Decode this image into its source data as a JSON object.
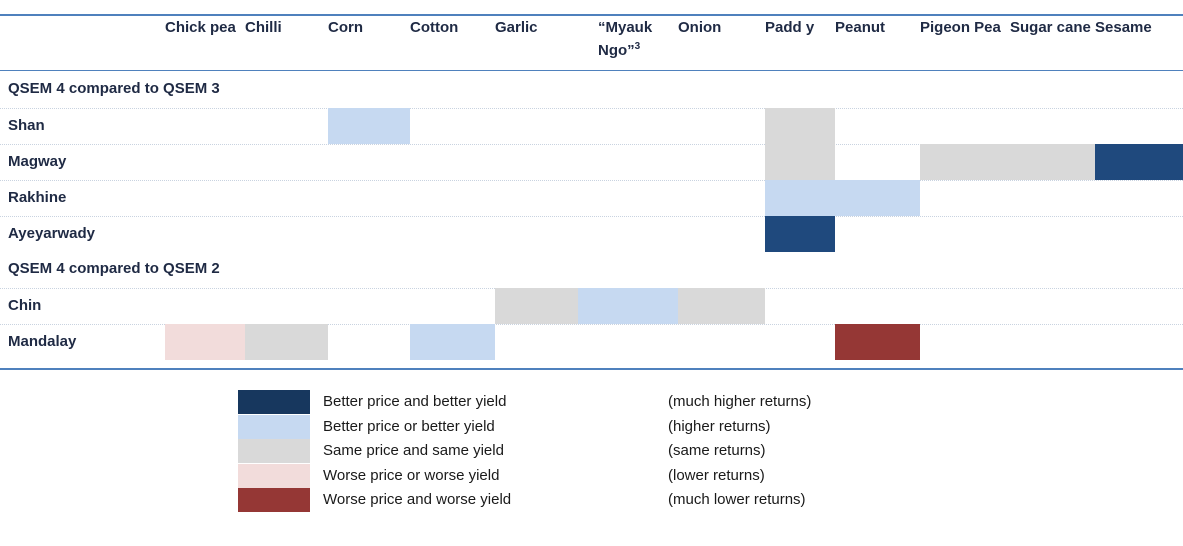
{
  "table": {
    "columns": [
      "Chick pea",
      "Chilli",
      "Corn",
      "Cotton",
      "Garlic",
      "“Myauk Ngo”",
      "Onion",
      "Padd y",
      "Peanut",
      "Pigeon Pea",
      "Sugar cane",
      "Sesame"
    ],
    "column_notes": {
      "5": "3"
    },
    "sections": [
      {
        "title": "QSEM 4 compared to QSEM 3",
        "rows": [
          {
            "label": "Shan",
            "cells": [
              null,
              null,
              1,
              null,
              null,
              null,
              null,
              2,
              null,
              null,
              null,
              null
            ]
          },
          {
            "label": "Magway",
            "cells": [
              null,
              null,
              null,
              null,
              null,
              null,
              null,
              2,
              null,
              2,
              2,
              0
            ]
          },
          {
            "label": "Rakhine",
            "cells": [
              null,
              null,
              null,
              null,
              null,
              null,
              null,
              1,
              1,
              null,
              null,
              null
            ]
          },
          {
            "label": "Ayeyarwady",
            "cells": [
              null,
              null,
              null,
              null,
              null,
              null,
              null,
              0,
              null,
              null,
              null,
              null
            ]
          }
        ]
      },
      {
        "title": "QSEM 4 compared to QSEM 2",
        "rows": [
          {
            "label": "Chin",
            "cells": [
              null,
              null,
              null,
              null,
              2,
              1,
              2,
              null,
              null,
              null,
              null,
              null
            ]
          },
          {
            "label": "Mandalay",
            "cells": [
              3,
              2,
              null,
              1,
              null,
              null,
              null,
              null,
              4,
              null,
              null,
              null
            ]
          }
        ]
      }
    ]
  },
  "legend": [
    {
      "color": "#17375e",
      "label": "Better price and better yield",
      "returns": "(much higher returns)"
    },
    {
      "color": "#c6d9f1",
      "label": "Better price or better yield",
      "returns": "(higher returns)"
    },
    {
      "color": "#d9d9d9",
      "label": "Same price and same yield",
      "returns": "(same returns)"
    },
    {
      "color": "#f2dcdb",
      "label": "Worse price or worse yield",
      "returns": "(lower returns)"
    },
    {
      "color": "#953735",
      "label": "Worse price and worse yield",
      "returns": "(much lower returns)"
    }
  ],
  "cell_colors": [
    "#1f497d",
    "#c6d9f1",
    "#d9d9d9",
    "#f2dcdb",
    "#953735"
  ]
}
